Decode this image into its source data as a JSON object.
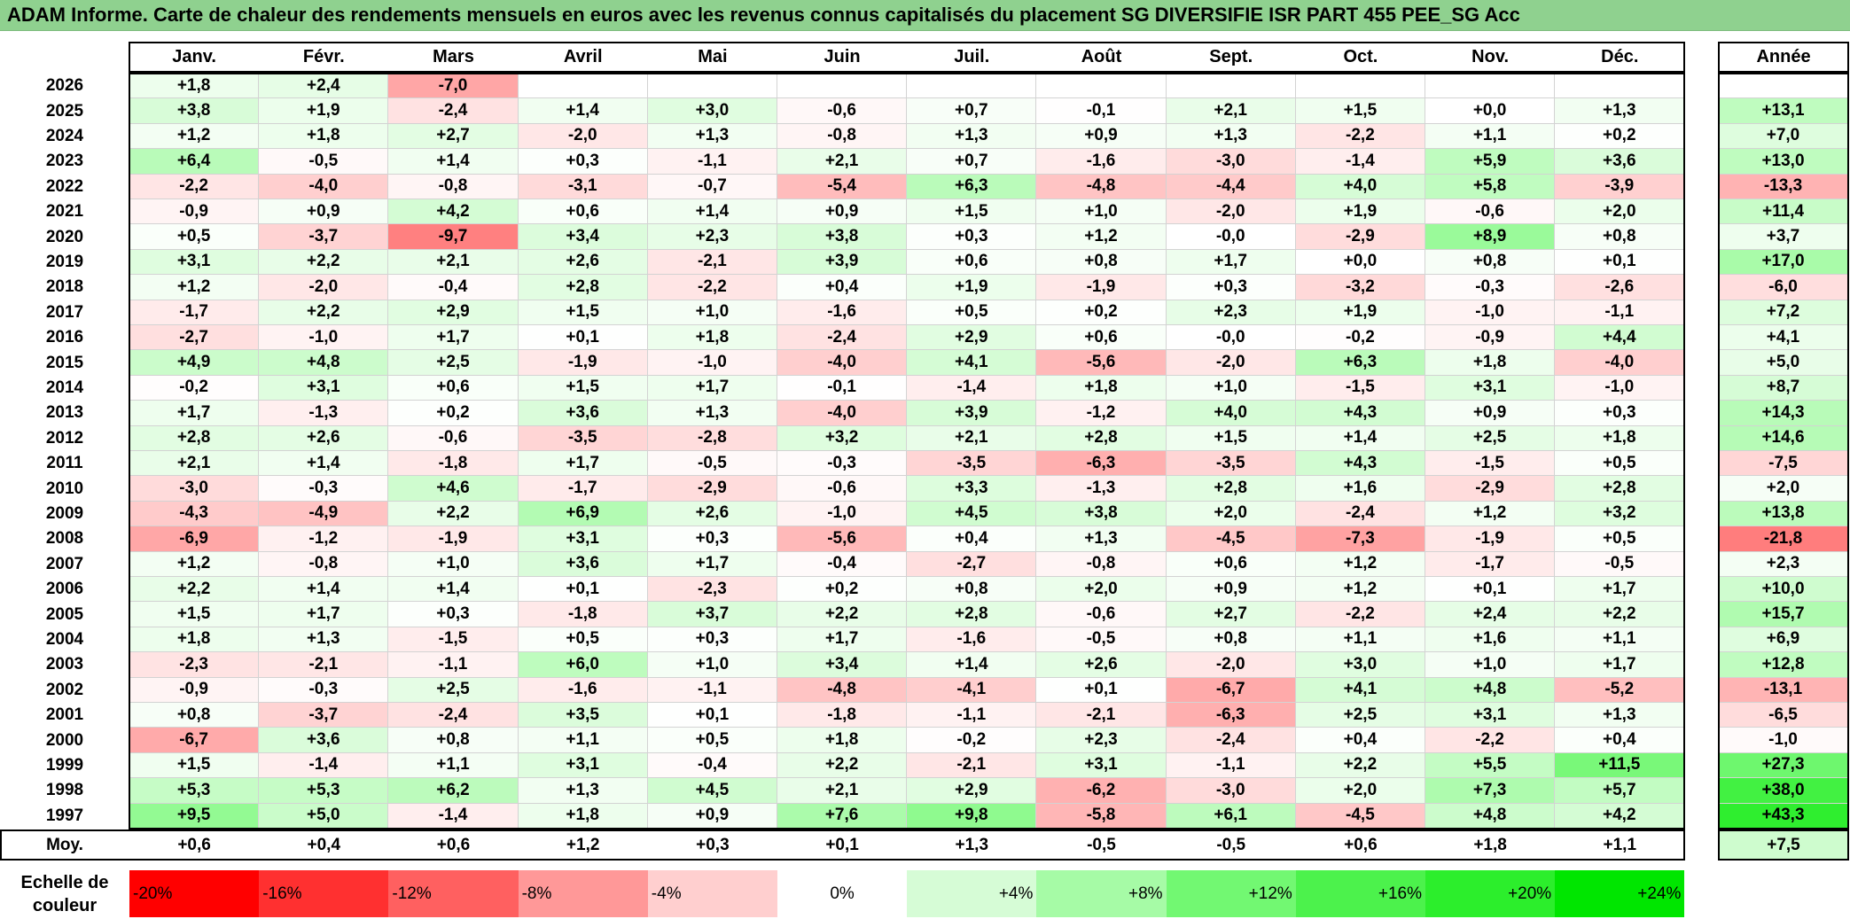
{
  "title": "ADAM Informe. Carte de chaleur des rendements mensuels en euros avec les revenus connus capitalisés du placement SG DIVERSIFIE ISR PART 455 PEE_SG Acc",
  "chart_data": {
    "type": "heatmap",
    "title": "ADAM Informe. Carte de chaleur des rendements mensuels en euros avec les revenus connus capitalisés du placement SG DIVERSIFIE ISR PART 455 PEE_SG Acc",
    "months": [
      "Janv.",
      "Févr.",
      "Mars",
      "Avril",
      "Mai",
      "Juin",
      "Juil.",
      "Août",
      "Sept.",
      "Oct.",
      "Nov.",
      "Déc."
    ],
    "year_header": "Année",
    "rows": [
      {
        "year": "2026",
        "values": [
          "+1,8",
          "+2,4",
          "-7,0",
          "",
          "",
          "",
          "",
          "",
          "",
          "",
          "",
          ""
        ],
        "annual": ""
      },
      {
        "year": "2025",
        "values": [
          "+3,8",
          "+1,9",
          "-2,4",
          "+1,4",
          "+3,0",
          "-0,6",
          "+0,7",
          "-0,1",
          "+2,1",
          "+1,5",
          "+0,0",
          "+1,3"
        ],
        "annual": "+13,1"
      },
      {
        "year": "2024",
        "values": [
          "+1,2",
          "+1,8",
          "+2,7",
          "-2,0",
          "+1,3",
          "-0,8",
          "+1,3",
          "+0,9",
          "+1,3",
          "-2,2",
          "+1,1",
          "+0,2"
        ],
        "annual": "+7,0"
      },
      {
        "year": "2023",
        "values": [
          "+6,4",
          "-0,5",
          "+1,4",
          "+0,3",
          "-1,1",
          "+2,1",
          "+0,7",
          "-1,6",
          "-3,0",
          "-1,4",
          "+5,9",
          "+3,6"
        ],
        "annual": "+13,0"
      },
      {
        "year": "2022",
        "values": [
          "-2,2",
          "-4,0",
          "-0,8",
          "-3,1",
          "-0,7",
          "-5,4",
          "+6,3",
          "-4,8",
          "-4,4",
          "+4,0",
          "+5,8",
          "-3,9"
        ],
        "annual": "-13,3"
      },
      {
        "year": "2021",
        "values": [
          "-0,9",
          "+0,9",
          "+4,2",
          "+0,6",
          "+1,4",
          "+0,9",
          "+1,5",
          "+1,0",
          "-2,0",
          "+1,9",
          "-0,6",
          "+2,0"
        ],
        "annual": "+11,4"
      },
      {
        "year": "2020",
        "values": [
          "+0,5",
          "-3,7",
          "-9,7",
          "+3,4",
          "+2,3",
          "+3,8",
          "+0,3",
          "+1,2",
          "-0,0",
          "-2,9",
          "+8,9",
          "+0,8"
        ],
        "annual": "+3,7"
      },
      {
        "year": "2019",
        "values": [
          "+3,1",
          "+2,2",
          "+2,1",
          "+2,6",
          "-2,1",
          "+3,9",
          "+0,6",
          "+0,8",
          "+1,7",
          "+0,0",
          "+0,8",
          "+0,1"
        ],
        "annual": "+17,0"
      },
      {
        "year": "2018",
        "values": [
          "+1,2",
          "-2,0",
          "-0,4",
          "+2,8",
          "-2,2",
          "+0,4",
          "+1,9",
          "-1,9",
          "+0,3",
          "-3,2",
          "-0,3",
          "-2,6"
        ],
        "annual": "-6,0"
      },
      {
        "year": "2017",
        "values": [
          "-1,7",
          "+2,2",
          "+2,9",
          "+1,5",
          "+1,0",
          "-1,6",
          "+0,5",
          "+0,2",
          "+2,3",
          "+1,9",
          "-1,0",
          "-1,1"
        ],
        "annual": "+7,2"
      },
      {
        "year": "2016",
        "values": [
          "-2,7",
          "-1,0",
          "+1,7",
          "+0,1",
          "+1,8",
          "-2,4",
          "+2,9",
          "+0,6",
          "-0,0",
          "-0,2",
          "-0,9",
          "+4,4"
        ],
        "annual": "+4,1"
      },
      {
        "year": "2015",
        "values": [
          "+4,9",
          "+4,8",
          "+2,5",
          "-1,9",
          "-1,0",
          "-4,0",
          "+4,1",
          "-5,6",
          "-2,0",
          "+6,3",
          "+1,8",
          "-4,0"
        ],
        "annual": "+5,0"
      },
      {
        "year": "2014",
        "values": [
          "-0,2",
          "+3,1",
          "+0,6",
          "+1,5",
          "+1,7",
          "-0,1",
          "-1,4",
          "+1,8",
          "+1,0",
          "-1,5",
          "+3,1",
          "-1,0"
        ],
        "annual": "+8,7"
      },
      {
        "year": "2013",
        "values": [
          "+1,7",
          "-1,3",
          "+0,2",
          "+3,6",
          "+1,3",
          "-4,0",
          "+3,9",
          "-1,2",
          "+4,0",
          "+4,3",
          "+0,9",
          "+0,3"
        ],
        "annual": "+14,3"
      },
      {
        "year": "2012",
        "values": [
          "+2,8",
          "+2,6",
          "-0,6",
          "-3,5",
          "-2,8",
          "+3,2",
          "+2,1",
          "+2,8",
          "+1,5",
          "+1,4",
          "+2,5",
          "+1,8"
        ],
        "annual": "+14,6"
      },
      {
        "year": "2011",
        "values": [
          "+2,1",
          "+1,4",
          "-1,8",
          "+1,7",
          "-0,5",
          "-0,3",
          "-3,5",
          "-6,3",
          "-3,5",
          "+4,3",
          "-1,5",
          "+0,5"
        ],
        "annual": "-7,5"
      },
      {
        "year": "2010",
        "values": [
          "-3,0",
          "-0,3",
          "+4,6",
          "-1,7",
          "-2,9",
          "-0,6",
          "+3,3",
          "-1,3",
          "+2,8",
          "+1,6",
          "-2,9",
          "+2,8"
        ],
        "annual": "+2,0"
      },
      {
        "year": "2009",
        "values": [
          "-4,3",
          "-4,9",
          "+2,2",
          "+6,9",
          "+2,6",
          "-1,0",
          "+4,5",
          "+3,8",
          "+2,0",
          "-2,4",
          "+1,2",
          "+3,2"
        ],
        "annual": "+13,8"
      },
      {
        "year": "2008",
        "values": [
          "-6,9",
          "-1,2",
          "-1,9",
          "+3,1",
          "+0,3",
          "-5,6",
          "+0,4",
          "+1,3",
          "-4,5",
          "-7,3",
          "-1,9",
          "+0,5"
        ],
        "annual": "-21,8"
      },
      {
        "year": "2007",
        "values": [
          "+1,2",
          "-0,8",
          "+1,0",
          "+3,6",
          "+1,7",
          "-0,4",
          "-2,7",
          "-0,8",
          "+0,6",
          "+1,2",
          "-1,7",
          "-0,5"
        ],
        "annual": "+2,3"
      },
      {
        "year": "2006",
        "values": [
          "+2,2",
          "+1,4",
          "+1,4",
          "+0,1",
          "-2,3",
          "+0,2",
          "+0,8",
          "+2,0",
          "+0,9",
          "+1,2",
          "+0,1",
          "+1,7"
        ],
        "annual": "+10,0"
      },
      {
        "year": "2005",
        "values": [
          "+1,5",
          "+1,7",
          "+0,3",
          "-1,8",
          "+3,7",
          "+2,2",
          "+2,8",
          "-0,6",
          "+2,7",
          "-2,2",
          "+2,4",
          "+2,2"
        ],
        "annual": "+15,7"
      },
      {
        "year": "2004",
        "values": [
          "+1,8",
          "+1,3",
          "-1,5",
          "+0,5",
          "+0,3",
          "+1,7",
          "-1,6",
          "-0,5",
          "+0,8",
          "+1,1",
          "+1,6",
          "+1,1"
        ],
        "annual": "+6,9"
      },
      {
        "year": "2003",
        "values": [
          "-2,3",
          "-2,1",
          "-1,1",
          "+6,0",
          "+1,0",
          "+3,4",
          "+1,4",
          "+2,6",
          "-2,0",
          "+3,0",
          "+1,0",
          "+1,7"
        ],
        "annual": "+12,8"
      },
      {
        "year": "2002",
        "values": [
          "-0,9",
          "-0,3",
          "+2,5",
          "-1,6",
          "-1,1",
          "-4,8",
          "-4,1",
          "+0,1",
          "-6,7",
          "+4,1",
          "+4,8",
          "-5,2"
        ],
        "annual": "-13,1"
      },
      {
        "year": "2001",
        "values": [
          "+0,8",
          "-3,7",
          "-2,4",
          "+3,5",
          "+0,1",
          "-1,8",
          "-1,1",
          "-2,1",
          "-6,3",
          "+2,5",
          "+3,1",
          "+1,3"
        ],
        "annual": "-6,5"
      },
      {
        "year": "2000",
        "values": [
          "-6,7",
          "+3,6",
          "+0,8",
          "+1,1",
          "+0,5",
          "+1,8",
          "-0,2",
          "+2,3",
          "-2,4",
          "+0,4",
          "-2,2",
          "+0,4"
        ],
        "annual": "-1,0"
      },
      {
        "year": "1999",
        "values": [
          "+1,5",
          "-1,4",
          "+1,1",
          "+3,1",
          "-0,4",
          "+2,2",
          "-2,1",
          "+3,1",
          "-1,1",
          "+2,2",
          "+5,5",
          "+11,5"
        ],
        "annual": "+27,3"
      },
      {
        "year": "1998",
        "values": [
          "+5,3",
          "+5,3",
          "+6,2",
          "+1,3",
          "+4,5",
          "+2,1",
          "+2,9",
          "-6,2",
          "-3,0",
          "+2,0",
          "+7,3",
          "+5,7"
        ],
        "annual": "+38,0"
      },
      {
        "year": "1997",
        "values": [
          "+9,5",
          "+5,0",
          "-1,4",
          "+1,8",
          "+0,9",
          "+7,6",
          "+9,8",
          "-5,8",
          "+6,1",
          "-4,5",
          "+4,8",
          "+4,2"
        ],
        "annual": "+43,3"
      }
    ],
    "average": {
      "label": "Moy.",
      "values": [
        "+0,6",
        "+0,4",
        "+0,6",
        "+1,2",
        "+0,3",
        "+0,1",
        "+1,3",
        "-0,5",
        "-0,5",
        "+0,6",
        "+1,8",
        "+1,1"
      ],
      "annual": "+7,5"
    },
    "scale": {
      "label_line1": "Echelle de",
      "label_line2": "couleur",
      "steps": [
        {
          "label": "-20%",
          "value": -20,
          "color": "#ff0000"
        },
        {
          "label": "-16%",
          "value": -16,
          "color": "#ff3030"
        },
        {
          "label": "-12%",
          "value": -12,
          "color": "#ff6060"
        },
        {
          "label": "-8%",
          "value": -8,
          "color": "#ff9898"
        },
        {
          "label": "-4%",
          "value": -4,
          "color": "#ffcfcf"
        },
        {
          "label": "0%",
          "value": 0,
          "color": "#ffffff"
        },
        {
          "label": "+4%",
          "value": 4,
          "color": "#d6fcd6"
        },
        {
          "label": "+8%",
          "value": 8,
          "color": "#a6fba6"
        },
        {
          "label": "+12%",
          "value": 12,
          "color": "#72f872"
        },
        {
          "label": "+16%",
          "value": 16,
          "color": "#4cf24c"
        },
        {
          "label": "+20%",
          "value": 20,
          "color": "#2cee2c"
        },
        {
          "label": "+24%",
          "value": 24,
          "color": "#00e600"
        }
      ]
    }
  }
}
